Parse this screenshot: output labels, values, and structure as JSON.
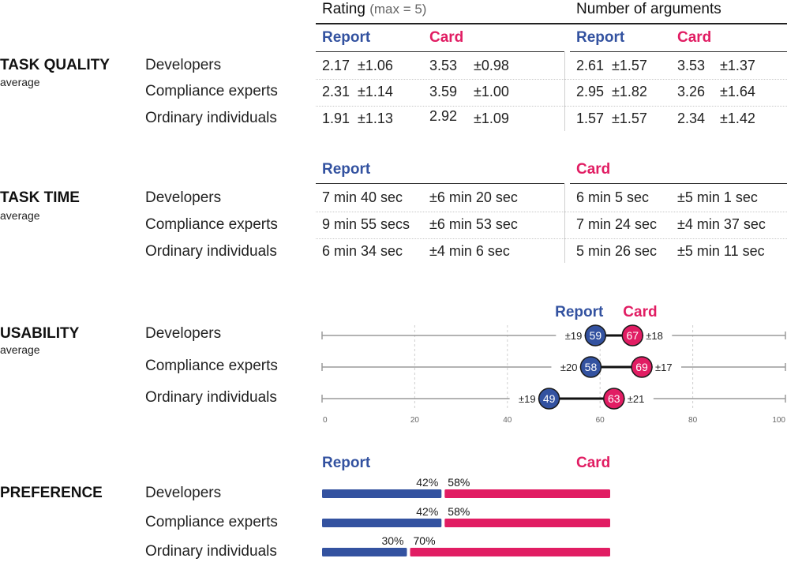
{
  "groups": [
    "Developers",
    "Compliance experts",
    "Ordinary individuals"
  ],
  "legend": {
    "report": "Report",
    "card": "Card"
  },
  "colors": {
    "report": "#3352a0",
    "card": "#e11d63",
    "axis": "#9a9a9a"
  },
  "task_quality": {
    "title": "TASK QUALITY",
    "subtitle": "average",
    "rating_header": "Rating",
    "rating_header_note": "(max = 5)",
    "args_header": "Number of arguments",
    "rows": [
      {
        "rating_report": "2.17",
        "rating_report_sd": "±1.06",
        "rating_card": "3.53",
        "rating_card_sd": "±0.98",
        "args_report": "2.61",
        "args_report_sd": "±1.57",
        "args_card": "3.53",
        "args_card_sd": "±1.37"
      },
      {
        "rating_report": "2.31",
        "rating_report_sd": "±1.14",
        "rating_card": "3.59",
        "rating_card_sd": "±1.00",
        "args_report": "2.95",
        "args_report_sd": "±1.82",
        "args_card": "3.26",
        "args_card_sd": "±1.64"
      },
      {
        "rating_report": "1.91",
        "rating_report_sd": "±1.13",
        "rating_card": "2.92",
        "rating_card_sd": "±1.09",
        "args_report": "1.57",
        "args_report_sd": "±1.57",
        "args_card": "2.34",
        "args_card_sd": "±1.42"
      }
    ]
  },
  "task_time": {
    "title": "TASK TIME",
    "subtitle": "average",
    "rows": [
      {
        "report": "7 min 40 sec",
        "report_sd": "±6 min 20 sec",
        "card": "6 min 5 sec",
        "card_sd": "±5 min 1 sec"
      },
      {
        "report": "9 min 55 secs",
        "report_sd": "±6 min 53 sec",
        "card": "7 min 24 sec",
        "card_sd": "±4 min 37 sec"
      },
      {
        "report": "6 min 34 sec",
        "report_sd": "±4 min 6 sec",
        "card": "5 min 26 sec",
        "card_sd": "±5 min 11 sec"
      }
    ]
  },
  "chart_data": [
    {
      "type": "scatter",
      "title": "USABILITY",
      "subtitle": "average",
      "categories": [
        "Developers",
        "Compliance experts",
        "Ordinary individuals"
      ],
      "xlim": [
        0,
        100
      ],
      "x_ticks": [
        0,
        20,
        40,
        60,
        80,
        100
      ],
      "grid": "vertical dashed",
      "series": [
        {
          "name": "Report",
          "values": [
            59,
            58,
            49
          ],
          "sd_labels": [
            "±19",
            "±20",
            "±19"
          ]
        },
        {
          "name": "Card",
          "values": [
            67,
            69,
            63
          ],
          "sd_labels": [
            "±18",
            "±17",
            "±21"
          ]
        }
      ]
    },
    {
      "type": "bar",
      "title": "PREFERENCE",
      "categories": [
        "Developers",
        "Compliance experts",
        "Ordinary individuals"
      ],
      "stacked": true,
      "units": "%",
      "series": [
        {
          "name": "Report",
          "values": [
            42,
            42,
            30
          ]
        },
        {
          "name": "Card",
          "values": [
            58,
            58,
            70
          ]
        }
      ]
    }
  ]
}
